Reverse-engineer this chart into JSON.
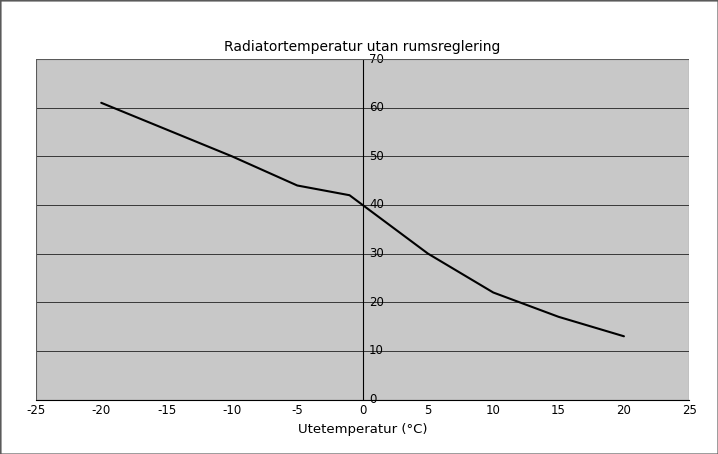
{
  "title": "Radiatortemperatur utan rumsreglering",
  "xlabel": "Utetemperatur (°C)",
  "x_data": [
    -20,
    -15,
    -10,
    -5,
    -3,
    -2,
    -1,
    0,
    1,
    2,
    3,
    5,
    10,
    15,
    20
  ],
  "y_data": [
    61,
    55.5,
    50,
    44,
    43,
    42.5,
    42,
    40,
    38,
    36,
    34,
    30,
    22,
    17,
    13
  ],
  "xlim": [
    -25,
    25
  ],
  "ylim": [
    0,
    70
  ],
  "xticks": [
    -25,
    -20,
    -15,
    -10,
    -5,
    0,
    5,
    10,
    15,
    20,
    25
  ],
  "yticks": [
    0,
    10,
    20,
    30,
    40,
    50,
    60,
    70
  ],
  "background_color": "#c8c8c8",
  "line_color": "#000000",
  "title_fontsize": 10,
  "tick_fontsize": 8.5,
  "xlabel_fontsize": 9.5,
  "grid_color": "#000000",
  "outer_bg": "#ffffff",
  "border_color": "#5a5a5a",
  "vline_x": 0
}
